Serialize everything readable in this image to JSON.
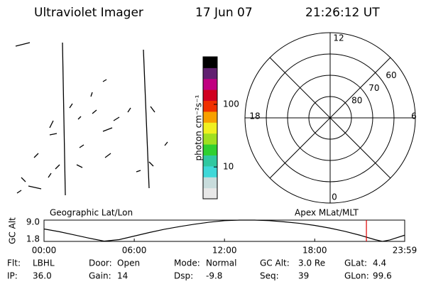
{
  "header": {
    "instrument": "Ultraviolet Imager",
    "date": "17 Jun 07",
    "time": "21:26:12 UT"
  },
  "map_labels": {
    "left": "Geographic Lat/Lon",
    "right": "Apex MLat/MLT"
  },
  "polar": {
    "mlt_labels": [
      "12",
      "6",
      "0",
      "18"
    ],
    "lat_rings": [
      60,
      70,
      80
    ],
    "min_lat": 50
  },
  "chart_data": [
    {
      "type": "colorbar",
      "label": "photon cm⁻²s⁻¹",
      "log_scale": true,
      "ylim": [
        3.1,
        575
      ],
      "yticks": [
        10,
        100
      ],
      "colors": [
        "#e8e8e8",
        "#c8dcdc",
        "#40d8d8",
        "#30c8a0",
        "#30d030",
        "#a0e020",
        "#f0f020",
        "#f8a000",
        "#f03000",
        "#d00020",
        "#c00080",
        "#602070",
        "#000000"
      ]
    },
    {
      "type": "line",
      "ylabel": "GC Alt",
      "ylim": [
        1.8,
        9.0
      ],
      "yticks": [
        1.8,
        {
          "value": 9.0,
          "label": "9.0"
        }
      ],
      "xlim": [
        0,
        23.983
      ],
      "xticks": [
        {
          "value": 0,
          "label": "00:00"
        },
        {
          "value": 6,
          "label": "06:00"
        },
        {
          "value": 12,
          "label": "12:00"
        },
        {
          "value": 18,
          "label": "18:00"
        },
        {
          "value": 23.983,
          "label": "23:59"
        }
      ],
      "x": [
        0,
        1,
        2,
        3,
        4,
        5,
        6,
        7,
        8,
        9,
        10,
        11,
        12,
        13,
        14,
        15,
        16,
        17,
        18,
        19,
        20,
        21,
        22,
        22.5,
        23,
        23.983
      ],
      "values": [
        6.0,
        5.1,
        4.0,
        2.9,
        1.9,
        2.4,
        3.6,
        4.8,
        5.9,
        6.8,
        7.6,
        8.3,
        8.8,
        9.0,
        9.0,
        8.8,
        8.4,
        7.9,
        7.2,
        6.3,
        5.2,
        3.9,
        2.4,
        1.8,
        2.3,
        3.9
      ],
      "color": "#000000",
      "marker_x": 21.437,
      "marker_color": "#e00000"
    }
  ],
  "info": [
    [
      [
        "Flt:",
        "LBHL"
      ],
      [
        "Door:",
        "Open"
      ],
      [
        "Mode:",
        "Normal"
      ],
      [
        "GC Alt:",
        "3.0 Re"
      ],
      [
        "GLat:",
        "4.4"
      ]
    ],
    [
      [
        "IP:",
        "36.0"
      ],
      [
        "Gain:",
        "14"
      ],
      [
        "Dsp:",
        "-9.8"
      ],
      [
        "Seq:",
        "39"
      ],
      [
        "GLon:",
        "99.6"
      ]
    ]
  ]
}
